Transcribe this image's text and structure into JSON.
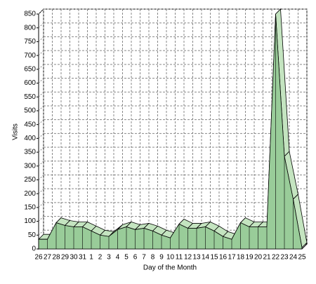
{
  "chart_data": {
    "type": "area3d",
    "x_label": "Day of the Month",
    "y_label": "Visits",
    "categories": [
      "26",
      "27",
      "28",
      "29",
      "30",
      "31",
      "1",
      "2",
      "3",
      "4",
      "5",
      "6",
      "7",
      "8",
      "9",
      "10",
      "11",
      "12",
      "13",
      "14",
      "15",
      "16",
      "17",
      "18",
      "19",
      "20",
      "21",
      "22",
      "23",
      "24",
      "25"
    ],
    "values": [
      35,
      35,
      95,
      85,
      80,
      80,
      65,
      50,
      45,
      70,
      80,
      70,
      75,
      65,
      50,
      40,
      90,
      75,
      75,
      80,
      65,
      45,
      35,
      95,
      80,
      80,
      80,
      850,
      335,
      180,
      5
    ],
    "color": "#99cc99",
    "ylim": [
      0,
      850
    ],
    "yticks": [
      0,
      50,
      100,
      150,
      200,
      250,
      300,
      350,
      400,
      450,
      500,
      550,
      600,
      650,
      700,
      750,
      800,
      850
    ],
    "grid": true
  }
}
